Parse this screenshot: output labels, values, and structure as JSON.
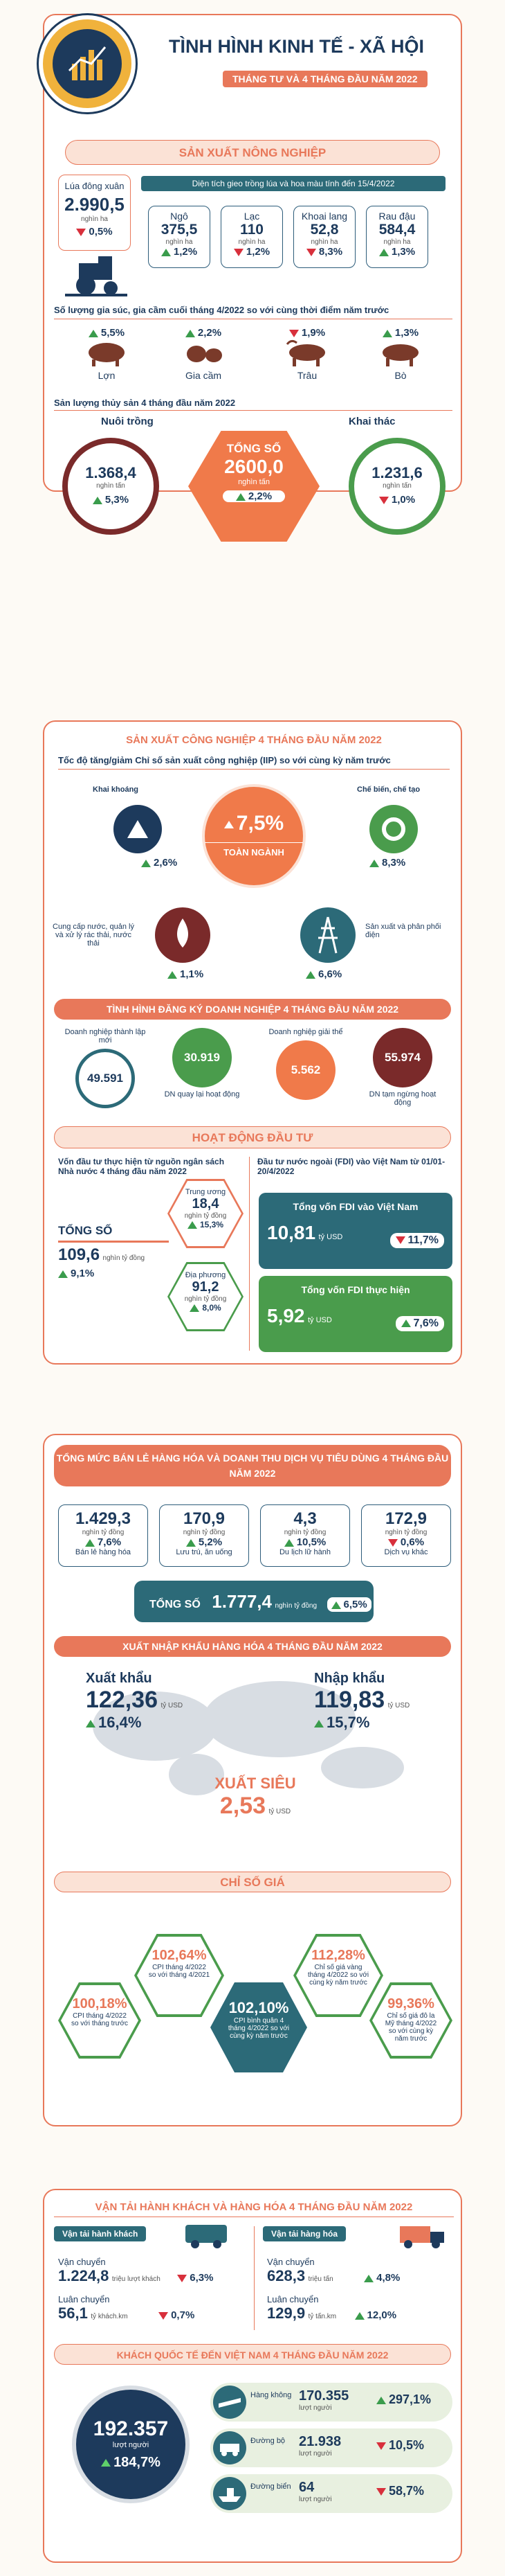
{
  "header": {
    "title": "TÌNH HÌNH KINH TẾ - XÃ HỘI",
    "subtitle": "THÁNG TƯ VÀ 4 THÁNG ĐẦU NĂM 2022"
  },
  "agri": {
    "title": "SẢN XUẤT NÔNG NGHIỆP",
    "rice": {
      "label": "Lúa đông xuân",
      "value": "2.990,5",
      "unit": "nghìn ha",
      "change": "0,5",
      "dir": "down"
    },
    "area_title": "Diện tích gieo trồng lúa và hoa màu tính đến 15/4/2022",
    "crops": [
      {
        "label": "Ngô",
        "value": "375,5",
        "unit": "nghìn ha",
        "change": "1,2",
        "dir": "up"
      },
      {
        "label": "Lạc",
        "value": "110",
        "unit": "nghìn ha",
        "change": "1,2",
        "dir": "down"
      },
      {
        "label": "Khoai lang",
        "value": "52,8",
        "unit": "nghìn ha",
        "change": "8,3",
        "dir": "down"
      },
      {
        "label": "Rau đậu",
        "value": "584,4",
        "unit": "nghìn ha",
        "change": "1,3",
        "dir": "up"
      }
    ],
    "livestock_title": "Số lượng gia súc, gia cầm cuối tháng 4/2022 so với cùng thời điểm năm trước",
    "livestock": [
      {
        "label": "Lợn",
        "change": "5,5",
        "dir": "up"
      },
      {
        "label": "Gia cầm",
        "change": "2,2",
        "dir": "up"
      },
      {
        "label": "Trâu",
        "change": "1,9",
        "dir": "down"
      },
      {
        "label": "Bò",
        "change": "1,3",
        "dir": "up"
      }
    ],
    "fish_title": "Sản lượng thủy sản 4 tháng đầu năm 2022",
    "farmed": {
      "label": "Nuôi trồng",
      "value": "1.368,4",
      "unit": "nghìn tấn",
      "change": "5,3",
      "dir": "up"
    },
    "total": {
      "label": "TỔNG SỐ",
      "value": "2600,0",
      "unit": "nghìn tấn",
      "change": "2,2",
      "dir": "up"
    },
    "caught": {
      "label": "Khai thác",
      "value": "1.231,6",
      "unit": "nghìn tấn",
      "change": "1,0",
      "dir": "down"
    }
  },
  "industry": {
    "title": "SẢN XUẤT CÔNG NGHIỆP 4 THÁNG ĐẦU NĂM 2022",
    "iip_title": "Tốc độ tăng/giảm Chỉ số sản xuất công nghiệp (IIP) so với cùng kỳ năm trước",
    "total": {
      "label": "TOÀN NGÀNH",
      "change": "7,5"
    },
    "mining": {
      "label": "Khai khoáng",
      "change": "2,6",
      "dir": "up"
    },
    "manufacturing": {
      "label": "Chế biến, chế tạo",
      "change": "8,3",
      "dir": "up"
    },
    "water": {
      "label": "Cung cấp nước, quản lý và xử lý rác thải, nước thải",
      "change": "1,1",
      "dir": "up"
    },
    "power": {
      "label": "Sản xuất và phân phối điện",
      "change": "6,6",
      "dir": "up"
    }
  },
  "business": {
    "title": "TÌNH HÌNH ĐĂNG KÝ DOANH NGHIỆP 4 THÁNG ĐẦU NĂM 2022",
    "items": [
      {
        "label": "Doanh nghiệp thành lập mới",
        "value": "49.591"
      },
      {
        "label": "DN quay lại hoạt động",
        "value": "30.919"
      },
      {
        "label": "Doanh nghiệp giải thể",
        "value": "5.562"
      },
      {
        "label": "DN tạm ngừng hoạt động",
        "value": "55.974"
      }
    ]
  },
  "invest": {
    "title": "HOẠT ĐỘNG ĐẦU TƯ",
    "state_title": "Vốn đầu tư thực hiện từ nguồn ngân sách Nhà nước 4 tháng đầu năm 2022",
    "total": {
      "label": "TỔNG SỐ",
      "value": "109,6",
      "unit": "nghìn tỷ đồng",
      "change": "9,1"
    },
    "central": {
      "label": "Trung ương",
      "value": "18,4",
      "unit": "nghìn tỷ đồng",
      "change": "15,3"
    },
    "local": {
      "label": "Địa phương",
      "value": "91,2",
      "unit": "nghìn tỷ đồng",
      "change": "8,0"
    },
    "fdi_title": "Đầu tư nước ngoài (FDI) vào Việt Nam từ 01/01-20/4/2022",
    "fdi_reg": {
      "label": "Tổng vốn FDI vào Việt Nam",
      "value": "10,81",
      "unit": "tỷ USD",
      "change": "11,7",
      "dir": "down"
    },
    "fdi_impl": {
      "label": "Tổng vốn FDI thực hiện",
      "value": "5,92",
      "unit": "tỷ USD",
      "change": "7,6",
      "dir": "up"
    }
  },
  "retail": {
    "title": "TỔNG MỨC BÁN LẺ HÀNG HÓA VÀ DOANH THU DỊCH VỤ TIÊU DÙNG 4 THÁNG ĐẦU NĂM 2022",
    "items": [
      {
        "label": "Bán lẻ hàng hóa",
        "value": "1.429,3",
        "unit": "nghìn tỷ đồng",
        "change": "7,6",
        "dir": "up"
      },
      {
        "label": "Lưu trú, ăn uống",
        "value": "170,9",
        "unit": "nghìn tỷ đồng",
        "change": "5,2",
        "dir": "up"
      },
      {
        "label": "Du lịch lữ hành",
        "value": "4,3",
        "unit": "nghìn tỷ đồng",
        "change": "10,5",
        "dir": "up"
      },
      {
        "label": "Dịch vụ khác",
        "value": "172,9",
        "unit": "nghìn tỷ đồng",
        "change": "0,6",
        "dir": "down"
      }
    ],
    "total": {
      "label": "TỔNG SỐ",
      "value": "1.777,4",
      "unit": "nghìn tỷ đồng",
      "change": "6,5"
    }
  },
  "trade": {
    "title": "XUẤT NHẬP KHẨU HÀNG HÓA 4 THÁNG ĐẦU NĂM 2022",
    "export": {
      "label": "Xuất khẩu",
      "value": "122,36",
      "unit": "tỷ USD",
      "change": "16,4"
    },
    "import": {
      "label": "Nhập khẩu",
      "value": "119,83",
      "unit": "tỷ USD",
      "change": "15,7"
    },
    "surplus": {
      "label": "XUẤT SIÊU",
      "value": "2,53",
      "unit": "tỷ USD"
    }
  },
  "prices": {
    "title": "CHỈ SỐ GIÁ",
    "items": [
      {
        "value": "100,18%",
        "label": "CPI tháng 4/2022 so với tháng trước"
      },
      {
        "value": "102,64%",
        "label": "CPI tháng 4/2022 so với tháng 4/2021"
      },
      {
        "value": "102,10%",
        "label": "CPI bình quân 4 tháng 4/2022 so với cùng kỳ năm trước"
      },
      {
        "value": "112,28%",
        "label": "Chỉ số giá vàng tháng 4/2022 so với cùng kỳ năm trước"
      },
      {
        "value": "99,36%",
        "label": "Chỉ số giá đô la Mỹ tháng 4/2022 so với cùng kỳ năm trước"
      }
    ]
  },
  "transport": {
    "title": "VẬN TẢI HÀNH KHÁCH VÀ HÀNG HÓA 4 THÁNG ĐẦU NĂM 2022",
    "pass_title": "Vận tải hành khách",
    "pass_carry": {
      "label": "Vận chuyển",
      "value": "1.224,8",
      "unit": "triệu lượt khách",
      "change": "6,3",
      "dir": "down"
    },
    "pass_rot": {
      "label": "Luân chuyển",
      "value": "56,1",
      "unit": "tỷ khách.km",
      "change": "0,7",
      "dir": "down"
    },
    "goods_title": "Vận tải hàng hóa",
    "goods_carry": {
      "label": "Vận chuyển",
      "value": "628,3",
      "unit": "triệu tấn",
      "change": "4,8",
      "dir": "up"
    },
    "goods_rot": {
      "label": "Luân chuyển",
      "value": "129,9",
      "unit": "tỷ tấn.km",
      "change": "12,0",
      "dir": "up"
    }
  },
  "tourists": {
    "title": "KHÁCH QUỐC TẾ ĐẾN VIỆT NAM 4 THÁNG ĐẦU NĂM 2022",
    "total": {
      "value": "192.357",
      "unit": "lượt người",
      "change": "184,7"
    },
    "air": {
      "label": "Hàng không",
      "value": "170.355",
      "unit": "lượt người",
      "change": "297,1",
      "dir": "up"
    },
    "road": {
      "label": "Đường bộ",
      "value": "21.938",
      "unit": "lượt người",
      "change": "10,5",
      "dir": "down"
    },
    "sea": {
      "label": "Đường biển",
      "value": "64",
      "unit": "lượt người",
      "change": "58,7",
      "dir": "down"
    }
  },
  "colors": {
    "accent": "#e8785a",
    "navy": "#1d3a5c",
    "green": "#3a9c4c",
    "red": "#d8303c",
    "teal": "#2c6a78"
  }
}
